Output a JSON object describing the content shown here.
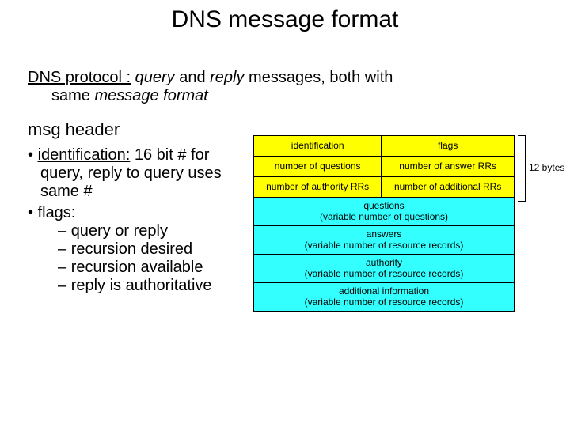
{
  "title": "DNS message format",
  "intro": {
    "lead": "DNS protocol :",
    "query_word": "query",
    "mid": " and ",
    "reply_word": "reply",
    "rest1": " messages, both with",
    "line2": "same ",
    "line2_i": "message format"
  },
  "subheader": "msg header",
  "bullets": {
    "b1_label": "identification:",
    "b1_text": " 16 bit # for query, reply to query uses same #",
    "b2_label": "flags:",
    "b2_sub1": "query or reply",
    "b2_sub2": "recursion desired",
    "b2_sub3": "recursion available",
    "b2_sub4": "reply is authoritative"
  },
  "diagram": {
    "header_color": "#ffff00",
    "body_color": "#33ffff",
    "border_color": "#000000",
    "font_size_pt": 9,
    "bracket_label": "12 bytes",
    "header_rows": [
      [
        "identification",
        "flags"
      ],
      [
        "number of questions",
        "number of answer RRs"
      ],
      [
        "number of authority RRs",
        "number of additional RRs"
      ]
    ],
    "body_rows": [
      "questions\n(variable number of questions)",
      "answers\n(variable number of resource records)",
      "authority\n(variable number of resource records)",
      "additional information\n(variable number of resource records)"
    ]
  }
}
